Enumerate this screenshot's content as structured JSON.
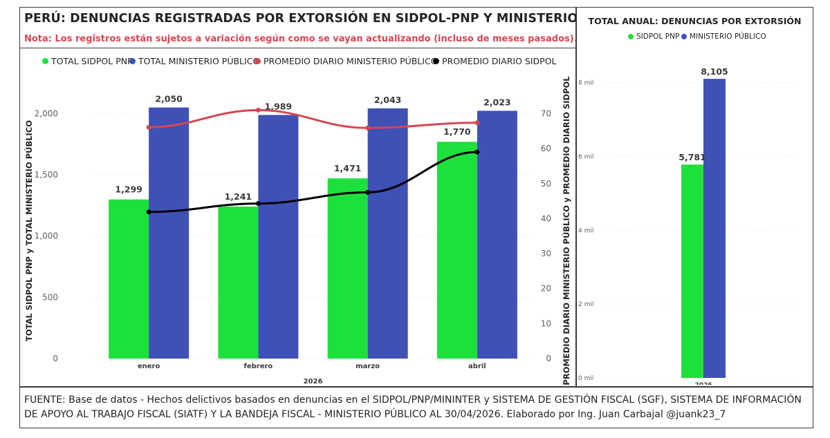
{
  "main": {
    "title": "PERÚ: DENUNCIAS REGISTRADAS POR EXTORSIÓN EN SIDPOL-PNP Y MINISTERIO PÚBLICO",
    "note": "Nota: Los registros están sujetos a variación según como se vayan actualizando (incluso de meses pasados).",
    "legend": [
      {
        "label": "TOTAL SIDPOL PNP",
        "color": "#1ee03c"
      },
      {
        "label": "TOTAL MINISTERIO PÚBLICO",
        "color": "#3f51b5"
      },
      {
        "label": "PROMEDIO DIARIO MINISTERIO PÚBLICO",
        "color": "#d64550"
      },
      {
        "label": "PROMEDIO DIARIO SIDPOL",
        "color": "#000000"
      }
    ]
  },
  "side": {
    "title": "TOTAL ANUAL: DENUNCIAS POR EXTORSIÓN",
    "legend": [
      {
        "label": "SIDPOL PNP",
        "color": "#1ee03c"
      },
      {
        "label": "MINISTERIO PÚBLICO",
        "color": "#3f51b5"
      }
    ]
  },
  "footer": {
    "text": "FUENTE: Base de datos - Hechos delictivos basados en denuncias en el SIDPOL/PNP/MININTER y SISTEMA DE GESTIÓN FISCAL (SGF), SISTEMA DE INFORMACIÓN DE APOYO AL TRABAJO FISCAL (SIATF) Y LA BANDEJA FISCAL - MINISTERIO PÚBLICO AL 30/04/2026. Elaborado por Ing. Juan Carbajal @juank23_7"
  },
  "chart_data": [
    {
      "type": "bar",
      "categories": [
        "enero",
        "febrero",
        "marzo",
        "abril"
      ],
      "xlabel": "2026",
      "ylabel": "TOTAL SIDPOL PNP y TOTAL MINISTERIO PÚBLICO",
      "y2label": "PROMEDIO DIARIO MINISTERIO PÚBLICO y PROMEDIO DIARIO SIDPOL",
      "ylim": [
        0,
        2200
      ],
      "y2lim": [
        0,
        77
      ],
      "yticks": [
        "0",
        "500",
        "1,000",
        "1,500",
        "2,000"
      ],
      "y2ticks": [
        "0",
        "10",
        "20",
        "30",
        "40",
        "50",
        "60",
        "70"
      ],
      "series": [
        {
          "name": "TOTAL SIDPOL PNP",
          "kind": "bar",
          "axis": "left",
          "color": "#1ee03c",
          "values": [
            1299,
            1241,
            1471,
            1770
          ],
          "labels": [
            "1,299",
            "1,241",
            "1,471",
            "1,770"
          ]
        },
        {
          "name": "TOTAL MINISTERIO PÚBLICO",
          "kind": "bar",
          "axis": "left",
          "color": "#3f51b5",
          "values": [
            2050,
            1989,
            2043,
            2023
          ],
          "labels": [
            "2,050",
            "1,989",
            "2,043",
            "2,023"
          ]
        },
        {
          "name": "PROMEDIO DIARIO MINISTERIO PÚBLICO",
          "kind": "line",
          "axis": "right",
          "color": "#d64550",
          "values": [
            66.1,
            71.0,
            65.9,
            67.4
          ]
        },
        {
          "name": "PROMEDIO DIARIO SIDPOL",
          "kind": "line",
          "axis": "right",
          "color": "#000000",
          "values": [
            41.9,
            44.3,
            47.5,
            59.0
          ]
        }
      ]
    },
    {
      "type": "bar",
      "title": "TOTAL ANUAL: DENUNCIAS POR EXTORSIÓN",
      "categories": [
        "2026"
      ],
      "ylim": [
        0,
        8800
      ],
      "yticks": [
        {
          "value": 0,
          "label": "0 mil"
        },
        {
          "value": 2000,
          "label": "2 mil"
        },
        {
          "value": 4000,
          "label": "4 mil"
        },
        {
          "value": 6000,
          "label": "6 mil"
        },
        {
          "value": 8000,
          "label": "8 mil"
        }
      ],
      "series": [
        {
          "name": "SIDPOL PNP",
          "color": "#1ee03c",
          "values": [
            5781
          ],
          "labels": [
            "5,781"
          ]
        },
        {
          "name": "MINISTERIO PÚBLICO",
          "color": "#3f51b5",
          "values": [
            8105
          ],
          "labels": [
            "8,105"
          ]
        }
      ]
    }
  ]
}
